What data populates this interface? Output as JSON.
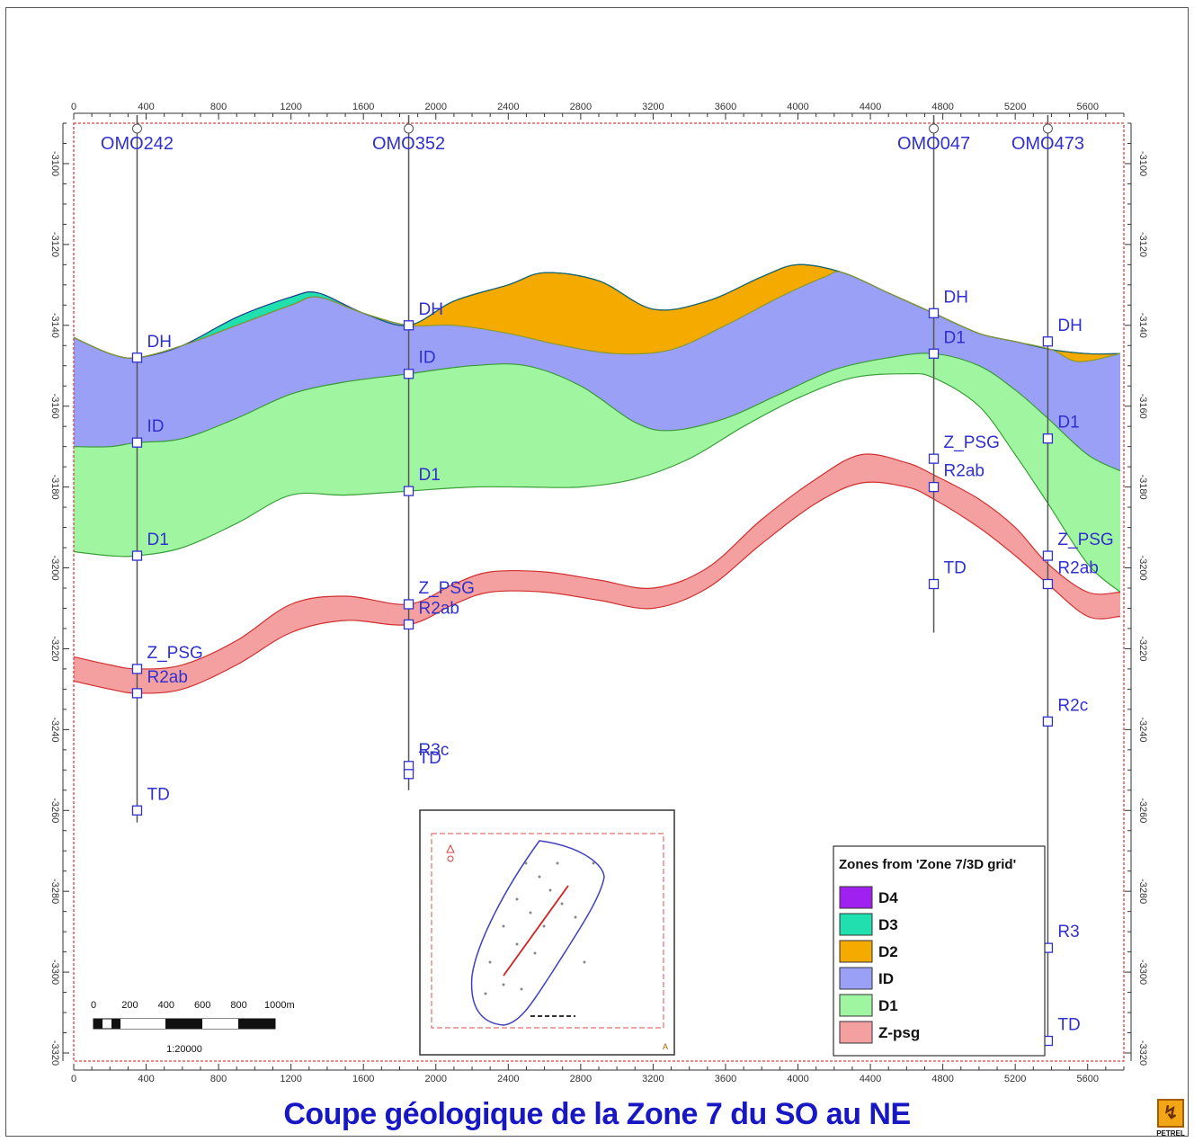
{
  "title": "Coupe géologique de la Zone 7 du SO au NE",
  "logo_label": "PETREL",
  "chart_data": {
    "type": "area",
    "x_ticks": [
      0,
      400,
      800,
      1200,
      1600,
      2000,
      2400,
      2800,
      3200,
      3600,
      4000,
      4400,
      4800,
      5200,
      5600
    ],
    "y_ticks": [
      -3100,
      -3120,
      -3140,
      -3160,
      -3180,
      -3200,
      -3220,
      -3240,
      -3260,
      -3280,
      -3300,
      -3320
    ],
    "xlim": [
      0,
      5800
    ],
    "ylim": [
      -3090,
      -3322
    ],
    "legend": {
      "title": "Zones from 'Zone 7/3D grid'",
      "placement": "bottom-right",
      "items": [
        {
          "label": "D4",
          "color": "#a020f0"
        },
        {
          "label": "D3",
          "color": "#20e0b0"
        },
        {
          "label": "D2",
          "color": "#f5aa00"
        },
        {
          "label": "ID",
          "color": "#9aa0f5"
        },
        {
          "label": "D1",
          "color": "#a0f5a0"
        },
        {
          "label": "Z-psg",
          "color": "#f5a0a0"
        }
      ]
    },
    "horizons": [
      {
        "name": "top",
        "points": [
          [
            0,
            -3143
          ],
          [
            200,
            -3147
          ],
          [
            350,
            -3148
          ],
          [
            600,
            -3145
          ],
          [
            900,
            -3138
          ],
          [
            1200,
            -3133
          ],
          [
            1350,
            -3132
          ],
          [
            1600,
            -3137
          ],
          [
            1850,
            -3140
          ],
          [
            2100,
            -3134
          ],
          [
            2400,
            -3130
          ],
          [
            2600,
            -3127
          ],
          [
            2900,
            -3129
          ],
          [
            3200,
            -3136
          ],
          [
            3500,
            -3134
          ],
          [
            3800,
            -3128
          ],
          [
            4000,
            -3125
          ],
          [
            4250,
            -3127
          ],
          [
            4500,
            -3132
          ],
          [
            4750,
            -3137
          ],
          [
            5000,
            -3142
          ],
          [
            5200,
            -3144
          ],
          [
            5400,
            -3146
          ],
          [
            5600,
            -3147
          ],
          [
            5780,
            -3147
          ]
        ]
      },
      {
        "name": "D3-base",
        "points": [
          [
            0,
            -3143
          ],
          [
            200,
            -3147
          ],
          [
            350,
            -3148
          ],
          [
            600,
            -3145
          ],
          [
            900,
            -3140
          ],
          [
            1200,
            -3135
          ],
          [
            1350,
            -3133
          ],
          [
            1600,
            -3137
          ],
          [
            1850,
            -3140
          ],
          [
            2100,
            -3134
          ],
          [
            2400,
            -3130
          ],
          [
            2600,
            -3127
          ],
          [
            2900,
            -3129
          ],
          [
            3200,
            -3136
          ],
          [
            3500,
            -3134
          ],
          [
            3800,
            -3128
          ],
          [
            4000,
            -3125
          ],
          [
            4250,
            -3127
          ],
          [
            4500,
            -3132
          ],
          [
            4750,
            -3137
          ],
          [
            5000,
            -3142
          ],
          [
            5200,
            -3144
          ],
          [
            5400,
            -3146
          ],
          [
            5600,
            -3147
          ],
          [
            5780,
            -3147
          ]
        ]
      },
      {
        "name": "D2-base",
        "points": [
          [
            0,
            -3143
          ],
          [
            200,
            -3147
          ],
          [
            350,
            -3148
          ],
          [
            600,
            -3145
          ],
          [
            900,
            -3140
          ],
          [
            1200,
            -3135
          ],
          [
            1350,
            -3133
          ],
          [
            1600,
            -3137
          ],
          [
            1850,
            -3140
          ],
          [
            2100,
            -3140
          ],
          [
            2400,
            -3142
          ],
          [
            2700,
            -3145
          ],
          [
            3000,
            -3147
          ],
          [
            3300,
            -3146
          ],
          [
            3600,
            -3140
          ],
          [
            3900,
            -3133
          ],
          [
            4150,
            -3128
          ],
          [
            4250,
            -3127
          ],
          [
            4500,
            -3132
          ],
          [
            4750,
            -3137
          ],
          [
            5000,
            -3142
          ],
          [
            5200,
            -3144
          ],
          [
            5400,
            -3146
          ],
          [
            5550,
            -3149
          ],
          [
            5780,
            -3147
          ]
        ]
      },
      {
        "name": "ID-base",
        "points": [
          [
            0,
            -3170
          ],
          [
            200,
            -3170
          ],
          [
            350,
            -3169
          ],
          [
            600,
            -3168
          ],
          [
            900,
            -3163
          ],
          [
            1200,
            -3157
          ],
          [
            1500,
            -3154
          ],
          [
            1850,
            -3152
          ],
          [
            2200,
            -3150
          ],
          [
            2500,
            -3150
          ],
          [
            2800,
            -3155
          ],
          [
            3100,
            -3164
          ],
          [
            3300,
            -3166
          ],
          [
            3600,
            -3163
          ],
          [
            3900,
            -3157
          ],
          [
            4200,
            -3151
          ],
          [
            4500,
            -3148
          ],
          [
            4750,
            -3147
          ],
          [
            5000,
            -3150
          ],
          [
            5200,
            -3156
          ],
          [
            5380,
            -3163
          ],
          [
            5600,
            -3172
          ],
          [
            5780,
            -3176
          ]
        ]
      },
      {
        "name": "D1-base",
        "points": [
          [
            0,
            -3196
          ],
          [
            200,
            -3197
          ],
          [
            350,
            -3197
          ],
          [
            600,
            -3195
          ],
          [
            900,
            -3189
          ],
          [
            1200,
            -3182
          ],
          [
            1500,
            -3182
          ],
          [
            1850,
            -3181
          ],
          [
            2200,
            -3180
          ],
          [
            2500,
            -3180
          ],
          [
            2800,
            -3180
          ],
          [
            3100,
            -3178
          ],
          [
            3400,
            -3173
          ],
          [
            3700,
            -3165
          ],
          [
            4000,
            -3158
          ],
          [
            4300,
            -3153
          ],
          [
            4600,
            -3152
          ],
          [
            4750,
            -3153
          ],
          [
            5000,
            -3160
          ],
          [
            5200,
            -3172
          ],
          [
            5380,
            -3184
          ],
          [
            5600,
            -3199
          ],
          [
            5780,
            -3206
          ]
        ]
      },
      {
        "name": "Zpsg-top",
        "points": [
          [
            0,
            -3222
          ],
          [
            200,
            -3224
          ],
          [
            350,
            -3225
          ],
          [
            600,
            -3224
          ],
          [
            900,
            -3218
          ],
          [
            1200,
            -3209
          ],
          [
            1500,
            -3207
          ],
          [
            1850,
            -3209
          ],
          [
            2100,
            -3204
          ],
          [
            2300,
            -3201
          ],
          [
            2600,
            -3201
          ],
          [
            2900,
            -3203
          ],
          [
            3200,
            -3205
          ],
          [
            3500,
            -3200
          ],
          [
            3800,
            -3188
          ],
          [
            4100,
            -3178
          ],
          [
            4350,
            -3172
          ],
          [
            4600,
            -3174
          ],
          [
            4750,
            -3177
          ],
          [
            5000,
            -3183
          ],
          [
            5200,
            -3190
          ],
          [
            5380,
            -3199
          ],
          [
            5600,
            -3206
          ],
          [
            5780,
            -3206
          ]
        ]
      },
      {
        "name": "Zpsg-base",
        "points": [
          [
            0,
            -3228
          ],
          [
            200,
            -3230
          ],
          [
            350,
            -3231
          ],
          [
            600,
            -3230
          ],
          [
            900,
            -3224
          ],
          [
            1200,
            -3216
          ],
          [
            1500,
            -3213
          ],
          [
            1850,
            -3214
          ],
          [
            2100,
            -3209
          ],
          [
            2300,
            -3206
          ],
          [
            2600,
            -3206
          ],
          [
            2900,
            -3208
          ],
          [
            3200,
            -3210
          ],
          [
            3500,
            -3205
          ],
          [
            3800,
            -3194
          ],
          [
            4100,
            -3184
          ],
          [
            4350,
            -3179
          ],
          [
            4600,
            -3180
          ],
          [
            4750,
            -3183
          ],
          [
            5000,
            -3190
          ],
          [
            5200,
            -3197
          ],
          [
            5380,
            -3204
          ],
          [
            5600,
            -3212
          ],
          [
            5780,
            -3212
          ]
        ]
      }
    ],
    "zones": [
      {
        "label": "D3",
        "top": "top",
        "base": "D3-base"
      },
      {
        "label": "D2",
        "top": "D3-base",
        "base": "D2-base"
      },
      {
        "label": "ID",
        "top": "D2-base",
        "base": "ID-base"
      },
      {
        "label": "D1",
        "top": "ID-base",
        "base": "D1-base"
      },
      {
        "label": "Z-psg",
        "top": "Zpsg-top",
        "base": "Zpsg-base"
      }
    ],
    "wells": [
      {
        "name": "OMO242",
        "x": 350,
        "top": -3090,
        "bottom": -3263,
        "markers": [
          {
            "label": "DH",
            "depth": -3148
          },
          {
            "label": "ID",
            "depth": -3169
          },
          {
            "label": "D1",
            "depth": -3197
          },
          {
            "label": "Z_PSG",
            "depth": -3225
          },
          {
            "label": "R2ab",
            "depth": -3231
          },
          {
            "label": "TD",
            "depth": -3260
          }
        ]
      },
      {
        "name": "OMO352",
        "x": 1850,
        "top": -3090,
        "bottom": -3255,
        "markers": [
          {
            "label": "DH",
            "depth": -3140
          },
          {
            "label": "ID",
            "depth": -3152
          },
          {
            "label": "D1",
            "depth": -3181
          },
          {
            "label": "Z_PSG",
            "depth": -3209
          },
          {
            "label": "R2ab",
            "depth": -3214
          },
          {
            "label": "R3c",
            "depth": -3249
          },
          {
            "label": "TD",
            "depth": -3251
          }
        ]
      },
      {
        "name": "OMO047",
        "x": 4750,
        "top": -3090,
        "bottom": -3216,
        "markers": [
          {
            "label": "DH",
            "depth": -3137
          },
          {
            "label": "D1",
            "depth": -3147
          },
          {
            "label": "Z_PSG",
            "depth": -3173
          },
          {
            "label": "R2ab",
            "depth": -3180
          },
          {
            "label": "TD",
            "depth": -3204
          }
        ]
      },
      {
        "name": "OMO473",
        "x": 5380,
        "top": -3090,
        "bottom": -3318,
        "markers": [
          {
            "label": "DH",
            "depth": -3144
          },
          {
            "label": "D1",
            "depth": -3168
          },
          {
            "label": "Z_PSG",
            "depth": -3197
          },
          {
            "label": "R2ab",
            "depth": -3204
          },
          {
            "label": "R2c",
            "depth": -3238
          },
          {
            "label": "R3",
            "depth": -3294
          },
          {
            "label": "TD",
            "depth": -3317
          }
        ]
      }
    ],
    "scale_bar": {
      "ticks": [
        "0",
        "200",
        "400",
        "600",
        "800",
        "1000m"
      ],
      "ratio": "1:20000"
    }
  }
}
